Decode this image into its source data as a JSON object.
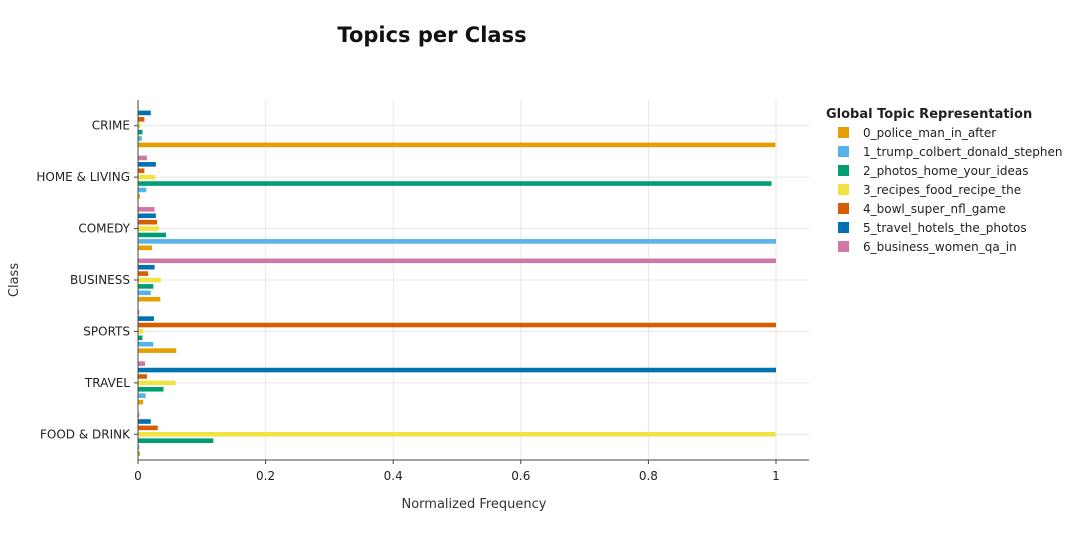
{
  "chart_data": {
    "type": "bar",
    "orientation": "horizontal",
    "title": "Topics per Class",
    "xlabel": "Normalized Frequency",
    "ylabel": "Class",
    "xlim": [
      0,
      1.05
    ],
    "x_ticks": [
      "0",
      "0.2",
      "0.4",
      "0.6",
      "0.8",
      "1"
    ],
    "x_tick_values": [
      0,
      0.2,
      0.4,
      0.6,
      0.8,
      1
    ],
    "grid": true,
    "legend_position": "right",
    "legend_title": "Global Topic Representation",
    "categories": [
      "CRIME",
      "HOME & LIVING",
      "COMEDY",
      "BUSINESS",
      "SPORTS",
      "TRAVEL",
      "FOOD & DRINK"
    ],
    "series": [
      {
        "name": "0_police_man_in_after",
        "color": "#E69F00",
        "values": [
          0.999,
          0.003,
          0.022,
          0.035,
          0.06,
          0.008,
          0.003
        ]
      },
      {
        "name": "1_trump_colbert_donald_stephen",
        "color": "#56B4E9",
        "values": [
          0.006,
          0.013,
          1.0,
          0.02,
          0.024,
          0.012,
          0.002
        ]
      },
      {
        "name": "2_photos_home_your_ideas",
        "color": "#009E73",
        "values": [
          0.007,
          0.993,
          0.044,
          0.024,
          0.007,
          0.04,
          0.118
        ]
      },
      {
        "name": "3_recipes_food_recipe_the",
        "color": "#F0E442",
        "values": [
          0.004,
          0.027,
          0.033,
          0.036,
          0.008,
          0.059,
          0.999
        ]
      },
      {
        "name": "4_bowl_super_nfl_game",
        "color": "#D55E00",
        "values": [
          0.01,
          0.01,
          0.03,
          0.016,
          1.0,
          0.014,
          0.031
        ]
      },
      {
        "name": "5_travel_hotels_the_photos",
        "color": "#0072B2",
        "values": [
          0.02,
          0.028,
          0.028,
          0.026,
          0.025,
          1.0,
          0.02
        ]
      },
      {
        "name": "6_business_women_qa_in",
        "color": "#CC79A7",
        "values": [
          0.001,
          0.014,
          0.026,
          1.0,
          0.002,
          0.011,
          0.002
        ]
      }
    ]
  }
}
